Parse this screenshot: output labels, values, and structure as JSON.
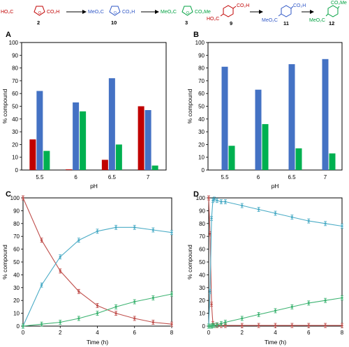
{
  "colors": {
    "red": "#c00000",
    "blue": "#4472c4",
    "green": "#00b050",
    "line_red": "#c0504d",
    "line_blue": "#4bacc6",
    "line_green": "#3cb371"
  },
  "scheme": {
    "left": {
      "compounds": [
        {
          "left": "HO₂C",
          "right": "CO₂H",
          "number": "2",
          "color": "#c00000"
        },
        {
          "left": "MeO₂C",
          "right": "CO₂H",
          "number": "10",
          "color": "#2e56c6"
        },
        {
          "left": "MeO₂C",
          "right": "CO₂Me",
          "number": "3",
          "color": "#00a040"
        }
      ]
    },
    "right": {
      "compounds": [
        {
          "top": "CO₂H",
          "bottom": "HO₂C",
          "number": "9",
          "color": "#c00000"
        },
        {
          "top": "CO₂H",
          "bottom": "MeO₂C",
          "number": "11",
          "color": "#2e56c6"
        },
        {
          "top": "CO₂Me",
          "bottom": "MeO₂C",
          "number": "12",
          "color": "#00a040"
        }
      ]
    }
  },
  "chart_data": [
    {
      "panel": "A",
      "type": "bar",
      "categories": [
        "5.5",
        "6",
        "6.5",
        "7"
      ],
      "series": [
        {
          "values": [
            24,
            0.5,
            8,
            50
          ],
          "color": "#c00000"
        },
        {
          "values": [
            62,
            53,
            72,
            47
          ],
          "color": "#4472c4"
        },
        {
          "values": [
            15,
            46,
            20,
            3.5
          ],
          "color": "#00b050"
        }
      ],
      "xlabel": "pH",
      "ylabel": "% compound",
      "ylim": [
        0,
        100
      ],
      "yticks": [
        "0",
        "10",
        "20",
        "30",
        "40",
        "50",
        "60",
        "70",
        "80",
        "90",
        "100"
      ]
    },
    {
      "panel": "B",
      "type": "bar",
      "categories": [
        "5.5",
        "6",
        "6.5",
        "7"
      ],
      "series": [
        {
          "values": [
            0,
            0,
            0,
            0
          ],
          "color": "#c00000"
        },
        {
          "values": [
            81,
            63,
            83,
            87
          ],
          "color": "#4472c4"
        },
        {
          "values": [
            19,
            36,
            17,
            13
          ],
          "color": "#00b050"
        }
      ],
      "xlabel": "pH",
      "ylabel": "% compound",
      "ylim": [
        0,
        100
      ],
      "yticks": [
        "0",
        "10",
        "20",
        "30",
        "40",
        "50",
        "60",
        "70",
        "80",
        "90",
        "100"
      ]
    },
    {
      "panel": "C",
      "type": "line",
      "xlabel": "Time (h)",
      "ylabel": "% compound",
      "xlim": [
        0,
        8
      ],
      "ylim": [
        0,
        100
      ],
      "xticks": [
        "0",
        "2",
        "4",
        "6",
        "8"
      ],
      "yticks": [
        "0",
        "10",
        "20",
        "30",
        "40",
        "50",
        "60",
        "70",
        "80",
        "90",
        "100"
      ],
      "series": [
        {
          "color": "#c0504d",
          "x": [
            0,
            1,
            2,
            3,
            4,
            5,
            6,
            7,
            8
          ],
          "y": [
            100,
            67,
            43,
            27,
            16,
            10,
            6,
            3,
            1.5
          ]
        },
        {
          "color": "#4bacc6",
          "x": [
            0,
            1,
            2,
            3,
            4,
            5,
            6,
            7,
            8
          ],
          "y": [
            0,
            32,
            54,
            67,
            74,
            77,
            77,
            75,
            73
          ]
        },
        {
          "color": "#3cb371",
          "x": [
            0,
            1,
            2,
            3,
            4,
            5,
            6,
            7,
            8
          ],
          "y": [
            0,
            1.5,
            3,
            6,
            10,
            15,
            19,
            22,
            25
          ]
        }
      ]
    },
    {
      "panel": "D",
      "type": "line",
      "xlabel": "Time (h)",
      "ylabel": "% compound",
      "xlim": [
        0,
        8
      ],
      "ylim": [
        0,
        100
      ],
      "xticks": [
        "0",
        "2",
        "4",
        "6",
        "8"
      ],
      "yticks": [
        "0",
        "10",
        "20",
        "30",
        "40",
        "50",
        "60",
        "70",
        "80",
        "90",
        "100"
      ],
      "series": [
        {
          "color": "#c0504d",
          "x": [
            0,
            0.08,
            0.17,
            0.25,
            0.33,
            0.5,
            0.75,
            1,
            2,
            3,
            4,
            5,
            6,
            7,
            8
          ],
          "y": [
            100,
            72,
            17,
            2,
            0.5,
            0.5,
            0.5,
            0.5,
            0.5,
            0.5,
            0.5,
            0.5,
            0.5,
            0.5,
            0.5
          ]
        },
        {
          "color": "#4bacc6",
          "x": [
            0,
            0.08,
            0.17,
            0.25,
            0.33,
            0.5,
            0.75,
            1,
            2,
            3,
            4,
            5,
            6,
            7,
            8
          ],
          "y": [
            0,
            27,
            84,
            98,
            99,
            98,
            97,
            97,
            94,
            91,
            88,
            85,
            82,
            80,
            78
          ]
        },
        {
          "color": "#3cb371",
          "x": [
            0,
            0.08,
            0.17,
            0.25,
            0.33,
            0.5,
            0.75,
            1,
            2,
            3,
            4,
            5,
            6,
            7,
            8
          ],
          "y": [
            0,
            0,
            0,
            0.5,
            0.5,
            1,
            2,
            3,
            6,
            9,
            12,
            15,
            18,
            20,
            22
          ]
        }
      ]
    }
  ]
}
